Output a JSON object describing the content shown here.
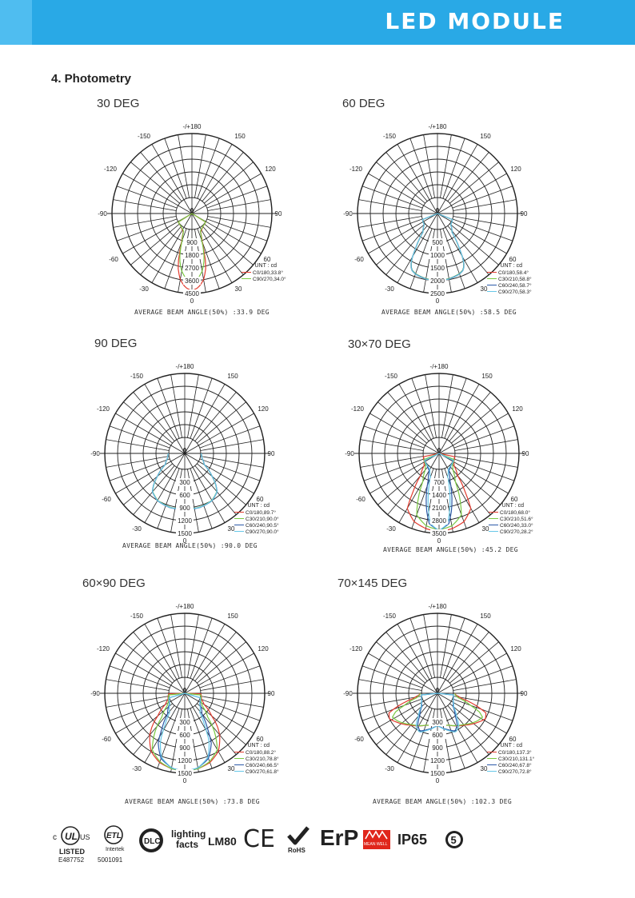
{
  "header": {
    "title": "LED MODULE"
  },
  "section": {
    "title": "4.  Photometry"
  },
  "unit_label": "UNT : cd",
  "beam_prefix": "AVERAGE BEAM ANGLE(50%) :",
  "angle_labels": {
    "top": "-/+180",
    "left_upper": "-150",
    "right_upper": "150",
    "left_mid_upper": "-120",
    "right_mid_upper": "120",
    "left_90": "-90",
    "right_90": "90",
    "left_lower": "-60",
    "right_lower": "60",
    "left_bottom": "-30",
    "right_bottom": "30",
    "center": "0",
    "bottom": "0"
  },
  "chart_data": [
    {
      "type": "polar",
      "title": "30 DEG",
      "radial_ticks": [
        "900",
        "1800",
        "2700",
        "3600",
        "4500"
      ],
      "rmax": 4500,
      "series": [
        {
          "name": "C0/180,33.8°",
          "color": "#e23b2e",
          "values": [
            [
              0,
              4300
            ],
            [
              5,
              4100
            ],
            [
              10,
              3600
            ],
            [
              15,
              2700
            ],
            [
              17,
              1900
            ],
            [
              20,
              1000
            ],
            [
              25,
              300
            ],
            [
              40,
              60
            ]
          ]
        },
        {
          "name": "C90/270,34.0°",
          "color": "#7ac943",
          "values": [
            [
              0,
              3700
            ],
            [
              5,
              3500
            ],
            [
              10,
              3000
            ],
            [
              15,
              2200
            ],
            [
              17,
              1700
            ],
            [
              20,
              900
            ],
            [
              25,
              250
            ],
            [
              40,
              50
            ]
          ]
        }
      ],
      "average_beam_angle": "33.9 DEG"
    },
    {
      "type": "polar",
      "title": "60 DEG",
      "radial_ticks": [
        "500",
        "1000",
        "1500",
        "2000",
        "2500"
      ],
      "rmax": 2500,
      "series": [
        {
          "name": "C0/180,58.4°",
          "color": "#e23b2e",
          "values": [
            [
              0,
              2000
            ],
            [
              10,
              1980
            ],
            [
              20,
              1900
            ],
            [
              25,
              1800
            ],
            [
              29,
              1500
            ],
            [
              32,
              1000
            ],
            [
              38,
              300
            ],
            [
              50,
              50
            ]
          ]
        },
        {
          "name": "C30/210,58.8°",
          "color": "#7ac943",
          "values": [
            [
              0,
              1980
            ],
            [
              10,
              1960
            ],
            [
              20,
              1880
            ],
            [
              25,
              1780
            ],
            [
              29,
              1480
            ],
            [
              32,
              990
            ],
            [
              38,
              290
            ],
            [
              50,
              50
            ]
          ]
        },
        {
          "name": "C60/240,58.7°",
          "color": "#2b5aa8",
          "values": [
            [
              0,
              1990
            ],
            [
              10,
              1970
            ],
            [
              20,
              1890
            ],
            [
              25,
              1790
            ],
            [
              29,
              1490
            ],
            [
              32,
              1000
            ],
            [
              38,
              300
            ],
            [
              50,
              50
            ]
          ]
        },
        {
          "name": "C90/270,58.3°",
          "color": "#67c7e8",
          "values": [
            [
              0,
              2000
            ],
            [
              10,
              1980
            ],
            [
              20,
              1900
            ],
            [
              25,
              1800
            ],
            [
              29,
              1500
            ],
            [
              32,
              1000
            ],
            [
              38,
              300
            ],
            [
              50,
              50
            ]
          ]
        }
      ],
      "average_beam_angle": "58.5 DEG"
    },
    {
      "type": "polar",
      "title": "90 DEG",
      "radial_ticks": [
        "300",
        "600",
        "900",
        "1200",
        "1500"
      ],
      "rmax": 1500,
      "series": [
        {
          "name": "C0/180,89.7°",
          "color": "#e23b2e",
          "values": [
            [
              0,
              920
            ],
            [
              15,
              940
            ],
            [
              30,
              900
            ],
            [
              40,
              800
            ],
            [
              45,
              650
            ],
            [
              50,
              460
            ],
            [
              60,
              150
            ],
            [
              75,
              40
            ]
          ]
        },
        {
          "name": "C30/210,90.0°",
          "color": "#7ac943",
          "values": [
            [
              0,
              920
            ],
            [
              15,
              935
            ],
            [
              30,
              895
            ],
            [
              40,
              795
            ],
            [
              45,
              645
            ],
            [
              50,
              460
            ],
            [
              60,
              150
            ],
            [
              75,
              40
            ]
          ]
        },
        {
          "name": "C60/240,90.5°",
          "color": "#2b5aa8",
          "values": [
            [
              0,
              925
            ],
            [
              15,
              945
            ],
            [
              30,
              905
            ],
            [
              40,
              805
            ],
            [
              45,
              655
            ],
            [
              50,
              465
            ],
            [
              60,
              155
            ],
            [
              75,
              40
            ]
          ]
        },
        {
          "name": "C90/270,90.0°",
          "color": "#67c7e8",
          "values": [
            [
              0,
              920
            ],
            [
              15,
              940
            ],
            [
              30,
              900
            ],
            [
              40,
              800
            ],
            [
              45,
              650
            ],
            [
              50,
              460
            ],
            [
              60,
              150
            ],
            [
              75,
              40
            ]
          ]
        }
      ],
      "average_beam_angle": "90.0 DEG"
    },
    {
      "type": "polar",
      "title": "30×70 DEG",
      "radial_ticks": [
        "700",
        "1400",
        "2100",
        "2800",
        "3500"
      ],
      "rmax": 3500,
      "series": [
        {
          "name": "C0/180,68.0°",
          "color": "#e23b2e",
          "values": [
            [
              0,
              3400
            ],
            [
              10,
              3300
            ],
            [
              20,
              3100
            ],
            [
              30,
              2600
            ],
            [
              34,
              1700
            ],
            [
              40,
              700
            ],
            [
              50,
              200
            ],
            [
              60,
              50
            ]
          ]
        },
        {
          "name": "C30/210,51.6°",
          "color": "#7ac943",
          "values": [
            [
              0,
              3300
            ],
            [
              10,
              3150
            ],
            [
              20,
              2700
            ],
            [
              25,
              1800
            ],
            [
              30,
              900
            ],
            [
              40,
              300
            ],
            [
              50,
              80
            ]
          ]
        },
        {
          "name": "C60/240,33.0°",
          "color": "#2b5aa8",
          "values": [
            [
              0,
              3350
            ],
            [
              8,
              3000
            ],
            [
              13,
              2200
            ],
            [
              17,
              1500
            ],
            [
              22,
              700
            ],
            [
              30,
              200
            ],
            [
              45,
              50
            ]
          ]
        },
        {
          "name": "C90/270,28.2°",
          "color": "#67c7e8",
          "values": [
            [
              0,
              3350
            ],
            [
              7,
              3000
            ],
            [
              12,
              2000
            ],
            [
              15,
              1400
            ],
            [
              20,
              500
            ],
            [
              30,
              120
            ],
            [
              45,
              40
            ]
          ]
        }
      ],
      "average_beam_angle": "45.2 DEG"
    },
    {
      "type": "polar",
      "title": "60×90 DEG",
      "radial_ticks": [
        "300",
        "600",
        "900",
        "1200",
        "1500"
      ],
      "rmax": 1500,
      "series": [
        {
          "name": "C0/180,88.2°",
          "color": "#e23b2e",
          "values": [
            [
              0,
              1450
            ],
            [
              10,
              1420
            ],
            [
              20,
              1350
            ],
            [
              30,
              1200
            ],
            [
              40,
              900
            ],
            [
              45,
              700
            ],
            [
              50,
              450
            ],
            [
              60,
              150
            ],
            [
              70,
              40
            ]
          ]
        },
        {
          "name": "C30/210,78.8°",
          "color": "#7ac943",
          "values": [
            [
              0,
              1450
            ],
            [
              10,
              1420
            ],
            [
              20,
              1330
            ],
            [
              30,
              1150
            ],
            [
              38,
              750
            ],
            [
              44,
              400
            ],
            [
              55,
              120
            ],
            [
              65,
              40
            ]
          ]
        },
        {
          "name": "C60/240,66.5°",
          "color": "#2b5aa8",
          "values": [
            [
              0,
              1450
            ],
            [
              10,
              1400
            ],
            [
              20,
              1250
            ],
            [
              28,
              950
            ],
            [
              33,
              600
            ],
            [
              40,
              250
            ],
            [
              55,
              60
            ]
          ]
        },
        {
          "name": "C90/270,61.8°",
          "color": "#67c7e8",
          "values": [
            [
              0,
              1450
            ],
            [
              10,
              1400
            ],
            [
              20,
              1220
            ],
            [
              27,
              880
            ],
            [
              31,
              550
            ],
            [
              38,
              200
            ],
            [
              55,
              50
            ]
          ]
        }
      ],
      "average_beam_angle": "73.8 DEG"
    },
    {
      "type": "polar",
      "title": "70×145 DEG",
      "radial_ticks": [
        "300",
        "600",
        "900",
        "1200",
        "1500"
      ],
      "rmax": 1500,
      "series": [
        {
          "name": "C0/180,137.3°",
          "color": "#e23b2e",
          "values": [
            [
              0,
              350
            ],
            [
              20,
              420
            ],
            [
              40,
              600
            ],
            [
              55,
              800
            ],
            [
              62,
              900
            ],
            [
              68,
              850
            ],
            [
              72,
              600
            ],
            [
              78,
              200
            ],
            [
              85,
              50
            ]
          ]
        },
        {
          "name": "C30/210,131.1°",
          "color": "#7ac943",
          "values": [
            [
              0,
              350
            ],
            [
              20,
              420
            ],
            [
              40,
              580
            ],
            [
              55,
              760
            ],
            [
              62,
              820
            ],
            [
              66,
              700
            ],
            [
              70,
              450
            ],
            [
              78,
              120
            ],
            [
              85,
              40
            ]
          ]
        },
        {
          "name": "C60/240,67.8°",
          "color": "#2b5aa8",
          "values": [
            [
              0,
              380
            ],
            [
              15,
              500
            ],
            [
              25,
              600
            ],
            [
              32,
              500
            ],
            [
              38,
              300
            ],
            [
              50,
              100
            ],
            [
              65,
              30
            ]
          ]
        },
        {
          "name": "C90/270,72.8°",
          "color": "#67c7e8",
          "values": [
            [
              0,
              380
            ],
            [
              15,
              520
            ],
            [
              25,
              630
            ],
            [
              33,
              550
            ],
            [
              40,
              320
            ],
            [
              50,
              120
            ],
            [
              65,
              30
            ]
          ]
        }
      ],
      "average_beam_angle": "102.3 DEG"
    }
  ],
  "certifications": {
    "ul_listed": "LISTED",
    "ul_number": "E487752",
    "intertek": "Intertek",
    "intertek_number": "5001091",
    "dlc": "DLC",
    "lighting_facts_1": "lighting",
    "lighting_facts_2": "facts",
    "lm80": "LM80",
    "ce": "CE",
    "rohs": "RoHS",
    "erp": "ErP",
    "meanwell": "MEAN WELL",
    "ip65": "IP65",
    "warranty": "5"
  }
}
